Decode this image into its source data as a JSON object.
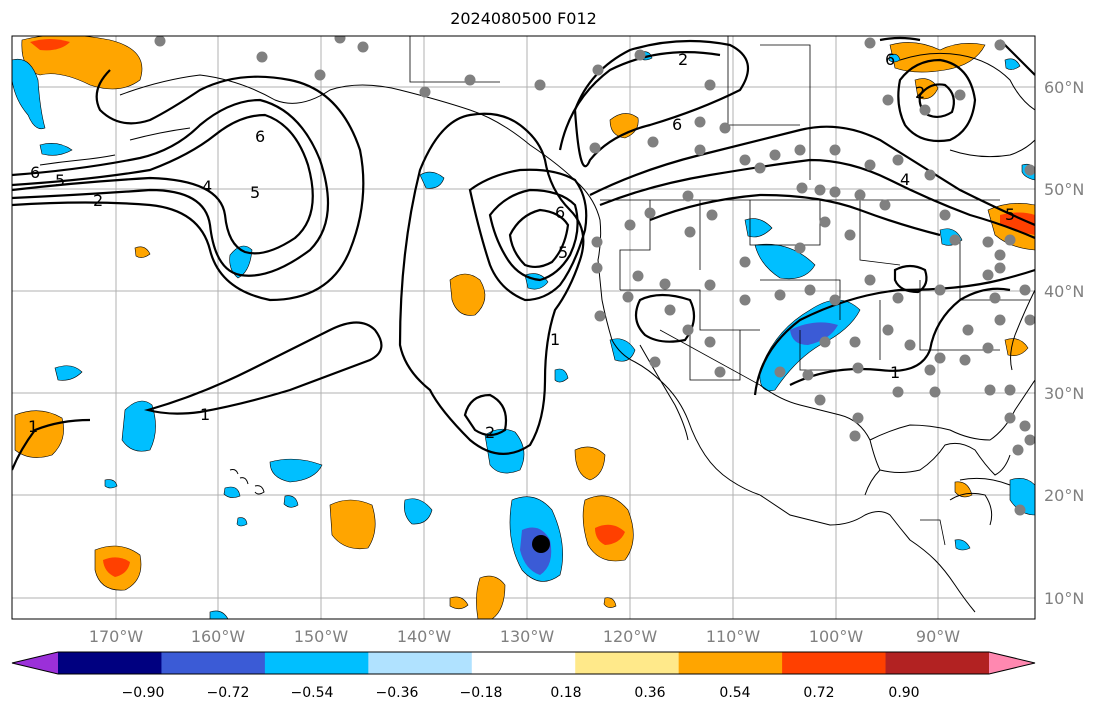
{
  "title": "2024080500 F012",
  "lat_labels": [
    "60°N",
    "50°N",
    "40°N",
    "30°N",
    "20°N",
    "10°N"
  ],
  "lon_labels": [
    "170°W",
    "160°W",
    "150°W",
    "140°W",
    "130°W",
    "120°W",
    "110°W",
    "100°W",
    "90°W"
  ],
  "colorbar": {
    "tick_labels": [
      "−0.90",
      "−0.72",
      "−0.54",
      "−0.36",
      "−0.18",
      "0.18",
      "0.36",
      "0.54",
      "0.72",
      "0.90"
    ],
    "colors": [
      "#9b30d9",
      "#000080",
      "#3b5bd6",
      "#00bfff",
      "#b0e2ff",
      "#ffffff",
      "#ffe98a",
      "#ffa500",
      "#ff4000",
      "#b22222",
      "#ff88b0"
    ]
  },
  "contour_labels": [
    "1",
    "2",
    "4",
    "5",
    "6"
  ],
  "colors": {
    "fill_positive": "#ffa500",
    "fill_negative": "#00bfff",
    "fill_strong_negative": "#3b5bd6",
    "fill_strong_positive": "#ff4000",
    "station": "#808080",
    "contour": "#000000"
  }
}
